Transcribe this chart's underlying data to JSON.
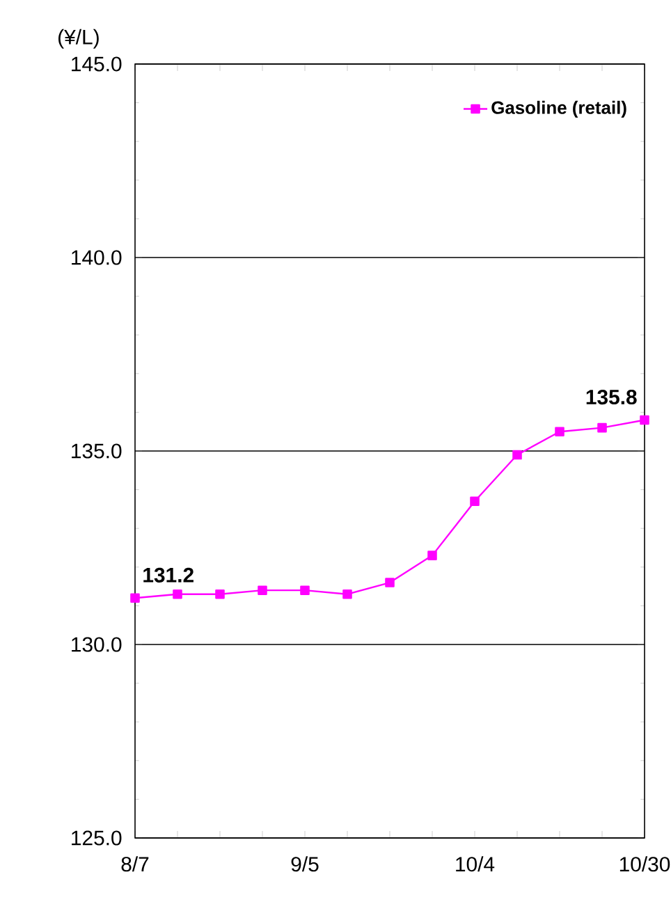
{
  "chart_data": {
    "type": "line",
    "ylabel": "(¥/L)",
    "categories": [
      "8/7",
      null,
      null,
      null,
      "9/5",
      null,
      null,
      null,
      "10/4",
      null,
      null,
      null,
      "10/30"
    ],
    "series": [
      {
        "name": "Gasoline (retail)",
        "color": "#ff00ff",
        "values": [
          131.2,
          131.3,
          131.3,
          131.4,
          131.4,
          131.3,
          131.6,
          132.3,
          133.7,
          134.9,
          135.5,
          135.6,
          135.8
        ],
        "value_labels": [
          "131.2",
          null,
          null,
          null,
          null,
          null,
          null,
          null,
          null,
          null,
          null,
          null,
          "135.8"
        ]
      }
    ],
    "ylim": [
      125,
      145
    ],
    "yticks": [
      {
        "value": 125,
        "label": "125.0"
      },
      {
        "value": 130,
        "label": "130.0"
      },
      {
        "value": 135,
        "label": "135.0"
      },
      {
        "value": 140,
        "label": "140.0"
      },
      {
        "value": 145,
        "label": "145.0"
      }
    ],
    "grid": "y",
    "legend": "top right",
    "marker": "square",
    "line_style": "solid"
  }
}
